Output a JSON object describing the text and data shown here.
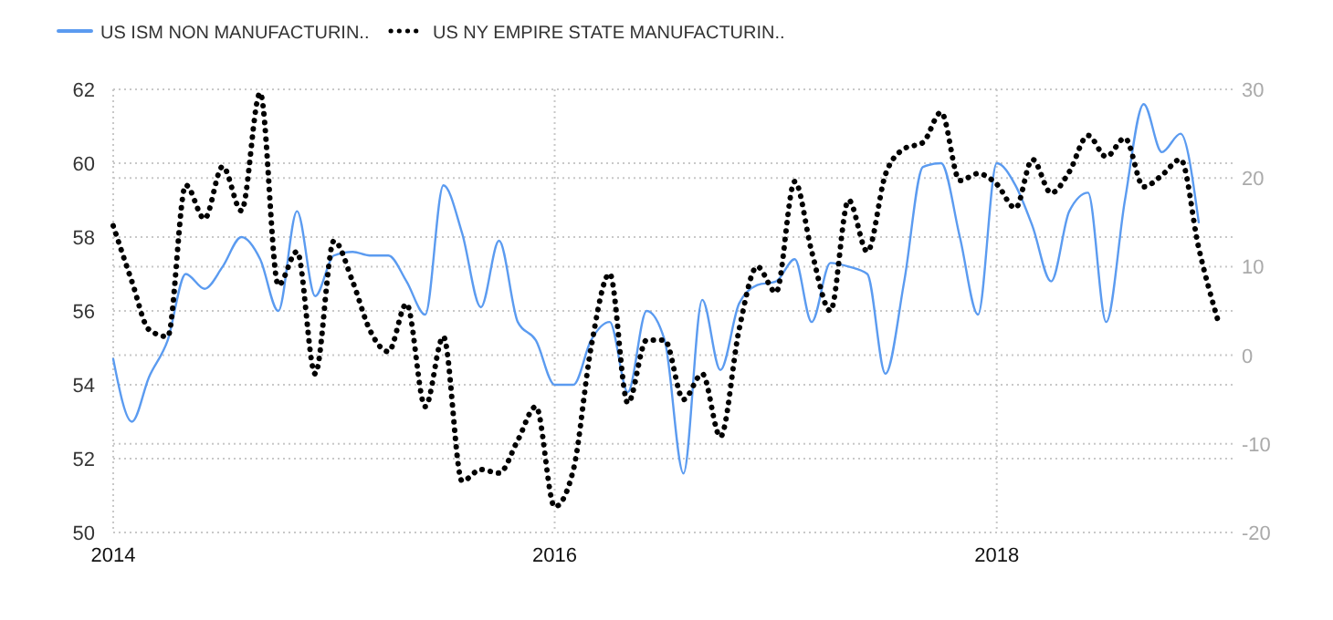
{
  "chart_data": {
    "type": "line",
    "x": [
      "2014-01",
      "2014-02",
      "2014-03",
      "2014-04",
      "2014-05",
      "2014-06",
      "2014-07",
      "2014-08",
      "2014-09",
      "2014-10",
      "2014-11",
      "2014-12",
      "2015-01",
      "2015-02",
      "2015-03",
      "2015-04",
      "2015-05",
      "2015-06",
      "2015-07",
      "2015-08",
      "2015-09",
      "2015-10",
      "2015-11",
      "2015-12",
      "2016-01",
      "2016-02",
      "2016-03",
      "2016-04",
      "2016-05",
      "2016-06",
      "2016-07",
      "2016-08",
      "2016-09",
      "2016-10",
      "2016-11",
      "2016-12",
      "2017-01",
      "2017-02",
      "2017-03",
      "2017-04",
      "2017-05",
      "2017-06",
      "2017-07",
      "2017-08",
      "2017-09",
      "2017-10",
      "2017-11",
      "2017-12",
      "2018-01",
      "2018-02",
      "2018-03",
      "2018-04",
      "2018-05",
      "2018-06",
      "2018-07",
      "2018-08",
      "2018-09",
      "2018-10",
      "2018-11",
      "2018-12",
      "2019-01"
    ],
    "series": [
      {
        "name": "US ISM NON MANUFACTURIN..",
        "color": "#5b9bf0",
        "line_style": "solid",
        "values": [
          54.7,
          53.0,
          54.2,
          55.2,
          57.0,
          56.6,
          57.2,
          58.0,
          57.4,
          56.0,
          58.7,
          56.4,
          57.5,
          57.6,
          57.5,
          57.5,
          56.8,
          55.9,
          59.4,
          58.1,
          56.1,
          57.9,
          55.7,
          55.2,
          54.0,
          54.0,
          55.2,
          55.7,
          53.8,
          56.0,
          55.2,
          51.6,
          56.3,
          54.4,
          56.2,
          56.7,
          56.8,
          57.4,
          55.7,
          57.3,
          57.2,
          57.0,
          54.3,
          56.8,
          59.9,
          60.0,
          58.0,
          55.9,
          60.0,
          59.4,
          58.3,
          56.8,
          58.7,
          59.2,
          55.7,
          59.0,
          61.6,
          60.3,
          60.8,
          58.4,
          null
        ]
      },
      {
        "name": "US NY EMPIRE STATE MANUFACTURIN..",
        "color": "#000000",
        "line_style": "dotted",
        "axis": "y2",
        "values": [
          14.6,
          8.3,
          2.9,
          2.1,
          19.2,
          15.4,
          21.3,
          16.3,
          29.6,
          7.9,
          11.7,
          -2.1,
          12.9,
          8.3,
          2.9,
          0.4,
          5.8,
          -5.8,
          2.1,
          -14.2,
          -12.9,
          -13.3,
          -9.6,
          -5.8,
          -17.1,
          -12.9,
          0.8,
          9.2,
          -5.4,
          1.7,
          1.7,
          -5.0,
          -2.1,
          -9.2,
          2.9,
          10.0,
          7.1,
          19.6,
          11.7,
          5.0,
          17.5,
          11.7,
          20.4,
          23.3,
          24.0,
          27.4,
          19.7,
          20.5,
          19.3,
          16.6,
          22.1,
          18.3,
          20.7,
          24.8,
          22.4,
          24.5,
          19.0,
          20.3,
          22.1,
          12.1,
          4.1
        ]
      }
    ],
    "xlim": [
      "2014-01",
      "2019-02"
    ],
    "xticks": [
      {
        "value": "2014-01",
        "label": "2014"
      },
      {
        "value": "2016-01",
        "label": "2016"
      },
      {
        "value": "2018-01",
        "label": "2018"
      }
    ],
    "ylim": [
      50,
      62
    ],
    "yticks": [
      50,
      52,
      54,
      56,
      58,
      60,
      62
    ],
    "y2lim": [
      -20,
      30
    ],
    "y2ticks": [
      -20,
      -10,
      0,
      10,
      20,
      30
    ],
    "grid": true,
    "legend": "top left"
  }
}
